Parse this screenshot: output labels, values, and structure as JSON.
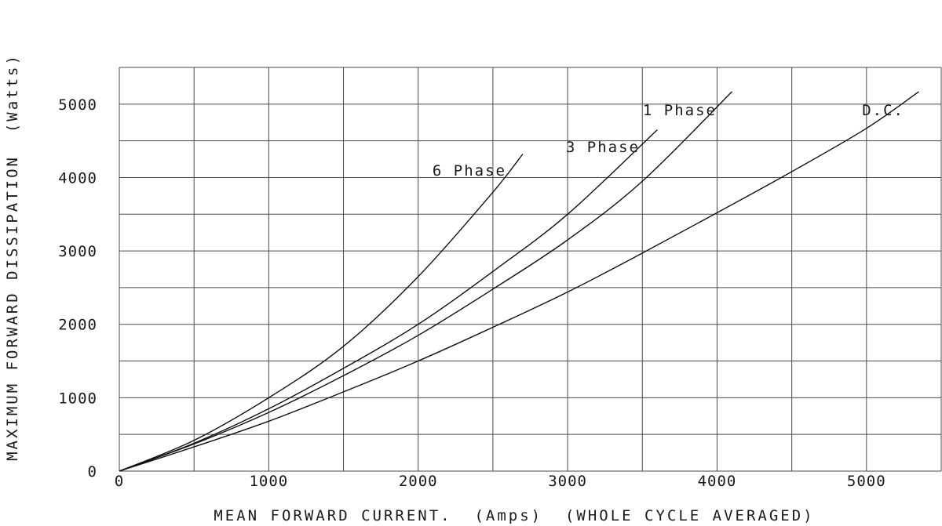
{
  "chart_data": {
    "type": "line",
    "title": "",
    "xlabel": "MEAN FORWARD CURRENT.  (Amps)  (WHOLE CYCLE AVERAGED)",
    "ylabel": "MAXIMUM FORWARD DISSIPATION  (Watts)",
    "xlim": [
      0,
      5500
    ],
    "ylim": [
      0,
      5500
    ],
    "x_grid_step": 500,
    "y_grid_step": 500,
    "grid": true,
    "x_ticks": [
      {
        "value": 0,
        "label": "0"
      },
      {
        "value": 1000,
        "label": "1000"
      },
      {
        "value": 2000,
        "label": "2000"
      },
      {
        "value": 3000,
        "label": "3000"
      },
      {
        "value": 4000,
        "label": "4000"
      },
      {
        "value": 5000,
        "label": "5000"
      }
    ],
    "y_ticks": [
      {
        "value": 0,
        "label": "0"
      },
      {
        "value": 1000,
        "label": "1000"
      },
      {
        "value": 2000,
        "label": "2000"
      },
      {
        "value": 3000,
        "label": "3000"
      },
      {
        "value": 4000,
        "label": "4000"
      },
      {
        "value": 5000,
        "label": "5000"
      }
    ],
    "series": [
      {
        "name": "6 Phase",
        "x": [
          0,
          500,
          1000,
          1500,
          2000,
          2500,
          2700
        ],
        "y": [
          0,
          420,
          1000,
          1700,
          2650,
          3800,
          4320
        ]
      },
      {
        "name": "3 Phase",
        "x": [
          0,
          500,
          1000,
          1500,
          2000,
          2500,
          3000,
          3600
        ],
        "y": [
          0,
          380,
          850,
          1400,
          2000,
          2720,
          3500,
          4650
        ]
      },
      {
        "name": "1 Phase",
        "x": [
          0,
          500,
          1000,
          1500,
          2000,
          2500,
          3000,
          3500,
          4100
        ],
        "y": [
          0,
          370,
          800,
          1300,
          1850,
          2480,
          3150,
          3950,
          5170
        ]
      },
      {
        "name": "D.C.",
        "x": [
          0,
          500,
          1000,
          1500,
          2000,
          2500,
          3000,
          3500,
          4000,
          4500,
          5000,
          5350
        ],
        "y": [
          0,
          330,
          680,
          1080,
          1500,
          1960,
          2440,
          2970,
          3520,
          4080,
          4670,
          5170
        ]
      }
    ]
  }
}
